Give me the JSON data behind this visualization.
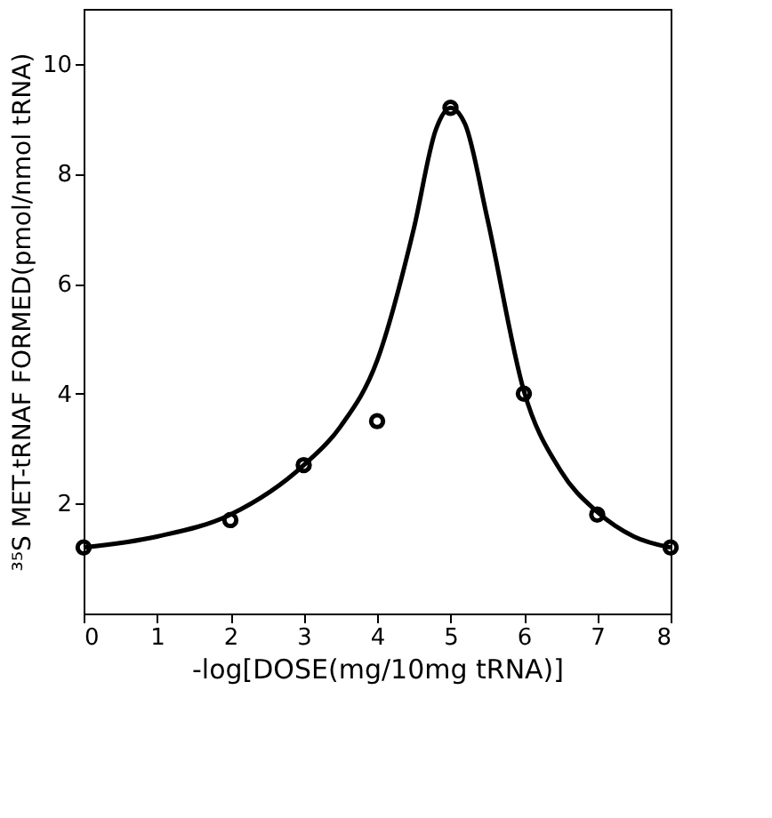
{
  "chart_data": {
    "type": "scatter",
    "xlabel": "-log[DOSE(mg/10mg tRNA)]",
    "ylabel": "³⁵S MET-tRNAF  FORMED(pmol/nmol tRNA)",
    "x": [
      0,
      2,
      3,
      4,
      5,
      6,
      7,
      8
    ],
    "series": [
      {
        "color": "#000000",
        "marker": "circle",
        "values": [
          1.2,
          1.7,
          2.7,
          3.5,
          9.2,
          4.0,
          1.8,
          1.2
        ]
      },
      {
        "type": "line",
        "color": "#000000",
        "line_style": "solid",
        "x": [
          0,
          1,
          2,
          3,
          3.5,
          4,
          4.5,
          4.8,
          5,
          5.2,
          5.5,
          6,
          6.5,
          7,
          7.5,
          8
        ],
        "values": [
          1.2,
          1.4,
          1.8,
          2.7,
          3.4,
          4.6,
          7.0,
          8.8,
          9.2,
          8.9,
          7.2,
          4.05,
          2.6,
          1.85,
          1.4,
          1.2
        ]
      }
    ],
    "xlim": [
      0,
      8
    ],
    "xticks": [
      0,
      1,
      2,
      3,
      4,
      5,
      6,
      7,
      8
    ],
    "ylim": [
      0,
      11
    ],
    "yticks": [
      2,
      4,
      6,
      8,
      10
    ],
    "grid": false
  }
}
